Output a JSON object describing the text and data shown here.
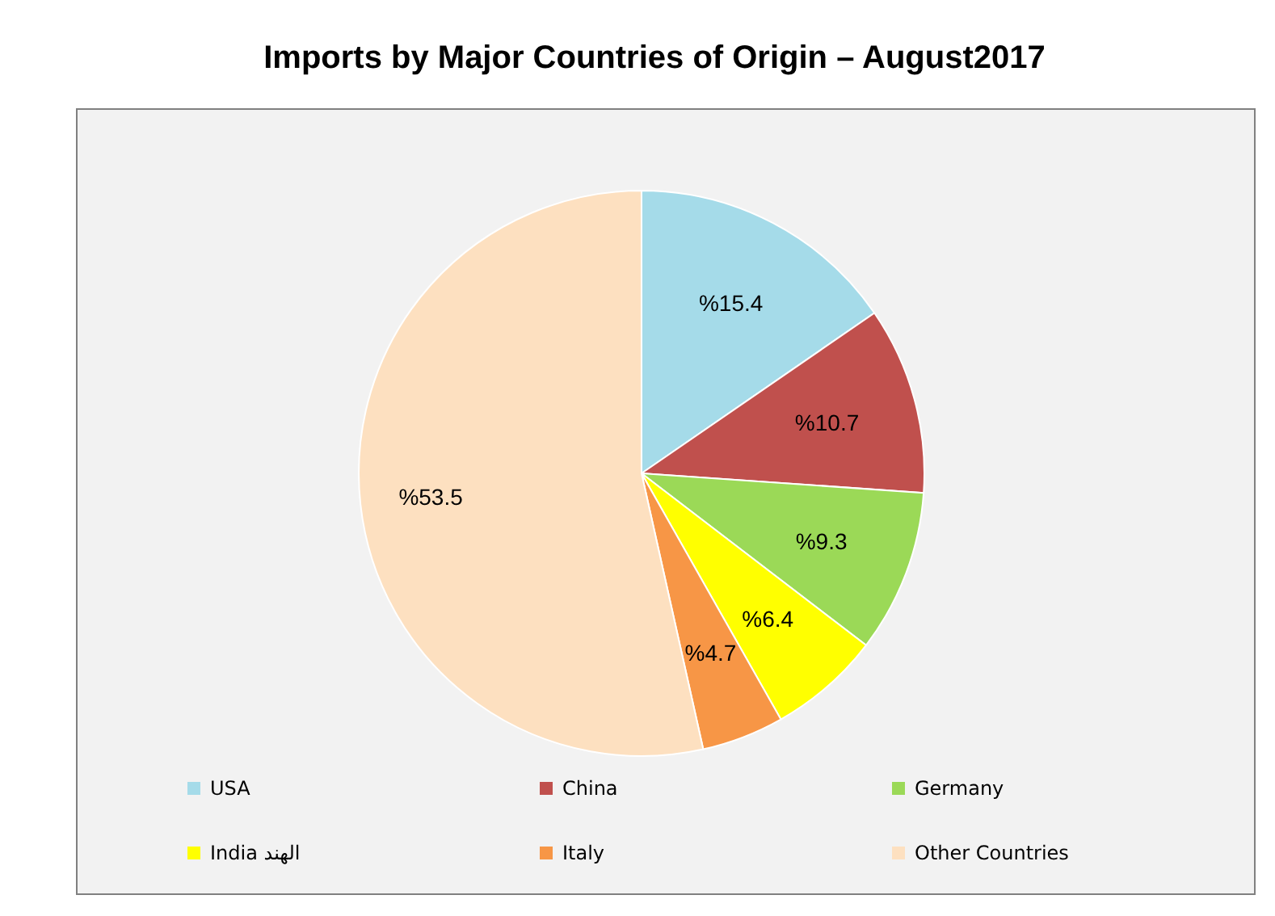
{
  "chart_data": {
    "type": "pie",
    "title": "Imports by Major Countries of Origin – August2017",
    "categories": [
      "USA",
      "China",
      "Germany",
      "India  الهند",
      "Italy",
      "Other Countries"
    ],
    "values": [
      15.4,
      10.7,
      9.3,
      6.4,
      4.7,
      53.5
    ],
    "value_labels": [
      "%15.4",
      "%10.7",
      "%9.3",
      "%6.4",
      "%4.7",
      "%53.5"
    ],
    "colors": [
      "#a5dbe9",
      "#c0504d",
      "#9bd957",
      "#ffff00",
      "#f79646",
      "#fde0c0"
    ],
    "legend": "bottom"
  }
}
